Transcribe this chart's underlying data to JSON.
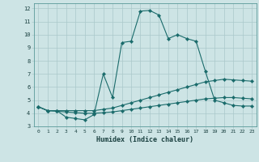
{
  "xlabel": "Humidex (Indice chaleur)",
  "xlim": [
    -0.5,
    23.5
  ],
  "ylim": [
    3,
    12.4
  ],
  "yticks": [
    3,
    4,
    5,
    6,
    7,
    8,
    9,
    10,
    11,
    12
  ],
  "xticks": [
    0,
    1,
    2,
    3,
    4,
    5,
    6,
    7,
    8,
    9,
    10,
    11,
    12,
    13,
    14,
    15,
    16,
    17,
    18,
    19,
    20,
    21,
    22,
    23
  ],
  "bg_color": "#cde4e5",
  "grid_color": "#aac8ca",
  "line_color": "#1a6b6b",
  "series1_x": [
    0,
    1,
    2,
    3,
    4,
    5,
    6,
    7,
    8,
    9,
    10,
    11,
    12,
    13,
    14,
    15,
    16,
    17,
    18,
    19,
    20,
    21,
    22,
    23
  ],
  "series1_y": [
    4.5,
    4.2,
    4.2,
    3.7,
    3.6,
    3.5,
    3.9,
    7.0,
    5.2,
    9.4,
    9.5,
    11.8,
    11.85,
    11.5,
    9.7,
    10.0,
    9.7,
    9.5,
    7.2,
    5.0,
    4.8,
    4.6,
    4.55,
    4.55
  ],
  "series2_x": [
    0,
    1,
    2,
    3,
    4,
    5,
    6,
    7,
    8,
    9,
    10,
    11,
    12,
    13,
    14,
    15,
    16,
    17,
    18,
    19,
    20,
    21,
    22,
    23
  ],
  "series2_y": [
    4.5,
    4.2,
    4.2,
    4.2,
    4.2,
    4.2,
    4.2,
    4.3,
    4.4,
    4.6,
    4.8,
    5.0,
    5.2,
    5.4,
    5.6,
    5.8,
    6.0,
    6.2,
    6.4,
    6.5,
    6.6,
    6.55,
    6.5,
    6.45
  ],
  "series3_x": [
    0,
    1,
    2,
    3,
    4,
    5,
    6,
    7,
    8,
    9,
    10,
    11,
    12,
    13,
    14,
    15,
    16,
    17,
    18,
    19,
    20,
    21,
    22,
    23
  ],
  "series3_y": [
    4.5,
    4.2,
    4.15,
    4.1,
    4.05,
    4.0,
    4.0,
    4.05,
    4.1,
    4.2,
    4.3,
    4.4,
    4.5,
    4.6,
    4.7,
    4.8,
    4.9,
    5.0,
    5.1,
    5.15,
    5.2,
    5.2,
    5.15,
    5.1
  ]
}
